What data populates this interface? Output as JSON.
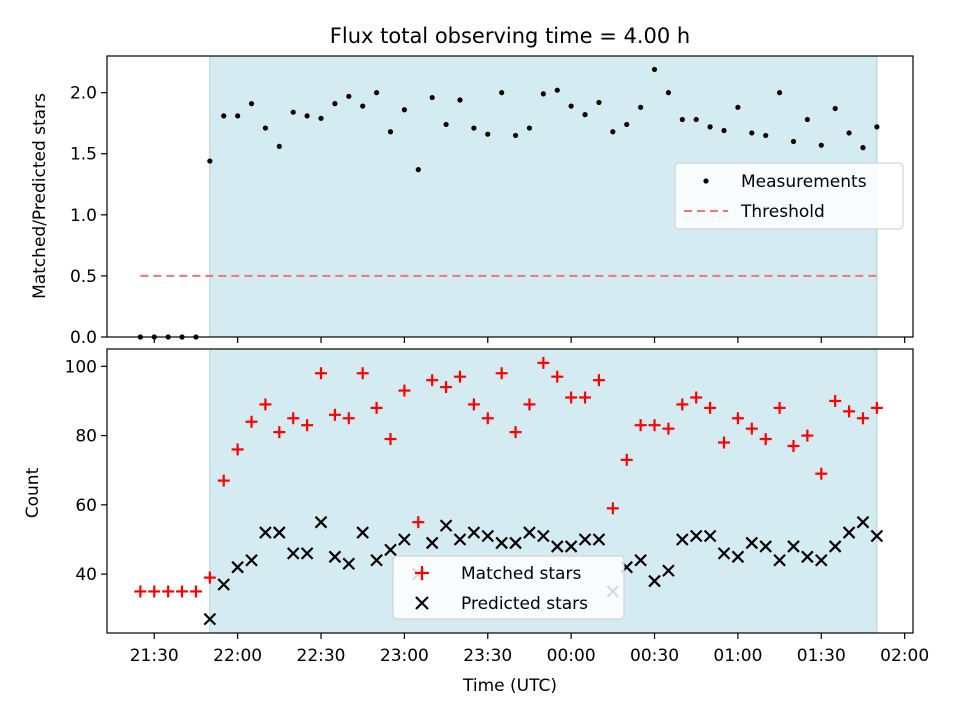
{
  "title": "Flux total observing time = 4.00 h",
  "colors": {
    "observing_window": "#d4ebf2",
    "measurements": "#000000",
    "threshold": "#f07575",
    "matched": "#ff0000",
    "predicted": "#000000"
  },
  "chart_data": [
    {
      "type": "scatter",
      "ylabel": "Matched/Predicted stars",
      "ylim": [
        0,
        2.3
      ],
      "yticks": [
        0.0,
        0.5,
        1.0,
        1.5,
        2.0
      ],
      "ytick_labels": [
        "0.0",
        "0.5",
        "1.0",
        "1.5",
        "2.0"
      ],
      "grid": false,
      "legend": "center-right",
      "shaded_interval": [
        "21:50",
        "01:50"
      ],
      "x": [
        "21:25",
        "21:30",
        "21:35",
        "21:40",
        "21:45",
        "21:50",
        "21:55",
        "22:00",
        "22:05",
        "22:10",
        "22:15",
        "22:20",
        "22:25",
        "22:30",
        "22:35",
        "22:40",
        "22:45",
        "22:50",
        "22:55",
        "23:00",
        "23:05",
        "23:10",
        "23:15",
        "23:20",
        "23:25",
        "23:30",
        "23:35",
        "23:40",
        "23:45",
        "23:50",
        "23:55",
        "00:00",
        "00:05",
        "00:10",
        "00:15",
        "00:20",
        "00:25",
        "00:30",
        "00:35",
        "00:40",
        "00:45",
        "00:50",
        "00:55",
        "01:00",
        "01:05",
        "01:10",
        "01:15",
        "01:20",
        "01:25",
        "01:30",
        "01:35",
        "01:40",
        "01:45",
        "01:50"
      ],
      "series": [
        {
          "name": "Measurements",
          "values": [
            0.0,
            0.0,
            0.0,
            0.0,
            0.0,
            1.44,
            1.81,
            1.81,
            1.91,
            1.71,
            1.56,
            1.84,
            1.81,
            1.79,
            1.91,
            1.97,
            1.89,
            2.0,
            1.68,
            1.86,
            1.37,
            1.96,
            1.74,
            1.94,
            1.71,
            1.66,
            2.0,
            1.65,
            1.71,
            1.99,
            2.02,
            1.89,
            1.82,
            1.92,
            1.68,
            1.74,
            1.88,
            2.19,
            2.0,
            1.78,
            1.78,
            1.72,
            1.69,
            1.88,
            1.67,
            1.65,
            2.0,
            1.6,
            1.78,
            1.57,
            1.87,
            1.67,
            1.55,
            1.72
          ]
        },
        {
          "name": "Threshold",
          "x": [
            "21:25",
            "01:50"
          ],
          "values": [
            0.5,
            0.5
          ]
        }
      ]
    },
    {
      "type": "scatter",
      "xlabel": "Time (UTC)",
      "ylabel": "Count",
      "ylim": [
        23,
        105
      ],
      "yticks": [
        40,
        60,
        80,
        100
      ],
      "ytick_labels": [
        "40",
        "60",
        "80",
        "100"
      ],
      "xtick_labels": [
        "21:30",
        "22:00",
        "22:30",
        "23:00",
        "23:30",
        "00:00",
        "00:30",
        "01:00",
        "01:30",
        "02:00"
      ],
      "grid": false,
      "legend": "lower-center",
      "shaded_interval": [
        "21:50",
        "01:50"
      ],
      "x": [
        "21:25",
        "21:30",
        "21:35",
        "21:40",
        "21:45",
        "21:50",
        "21:55",
        "22:00",
        "22:05",
        "22:10",
        "22:15",
        "22:20",
        "22:25",
        "22:30",
        "22:35",
        "22:40",
        "22:45",
        "22:50",
        "22:55",
        "23:00",
        "23:05",
        "23:10",
        "23:15",
        "23:20",
        "23:25",
        "23:30",
        "23:35",
        "23:40",
        "23:45",
        "23:50",
        "23:55",
        "00:00",
        "00:05",
        "00:10",
        "00:15",
        "00:20",
        "00:25",
        "00:30",
        "00:35",
        "00:40",
        "00:45",
        "00:50",
        "00:55",
        "01:00",
        "01:05",
        "01:10",
        "01:15",
        "01:20",
        "01:25",
        "01:30",
        "01:35",
        "01:40",
        "01:45",
        "01:50"
      ],
      "series": [
        {
          "name": "Matched stars",
          "values": [
            35,
            35,
            35,
            35,
            35,
            39,
            67,
            76,
            84,
            89,
            81,
            85,
            83,
            98,
            86,
            85,
            98,
            88,
            79,
            93,
            55,
            96,
            94,
            97,
            89,
            85,
            98,
            81,
            89,
            101,
            97,
            91,
            91,
            96,
            59,
            73,
            83,
            83,
            82,
            89,
            91,
            88,
            78,
            85,
            82,
            79,
            88,
            77,
            80,
            69,
            90,
            87,
            85,
            88
          ]
        },
        {
          "name": "Predicted stars",
          "values": [
            null,
            null,
            null,
            null,
            null,
            27,
            37,
            42,
            44,
            52,
            52,
            46,
            46,
            55,
            45,
            43,
            52,
            44,
            47,
            50,
            40,
            49,
            54,
            50,
            52,
            51,
            49,
            49,
            52,
            51,
            48,
            48,
            50,
            50,
            35,
            42,
            44,
            38,
            41,
            50,
            51,
            51,
            46,
            45,
            49,
            48,
            44,
            48,
            45,
            44,
            48,
            52,
            55,
            51
          ]
        }
      ]
    }
  ]
}
